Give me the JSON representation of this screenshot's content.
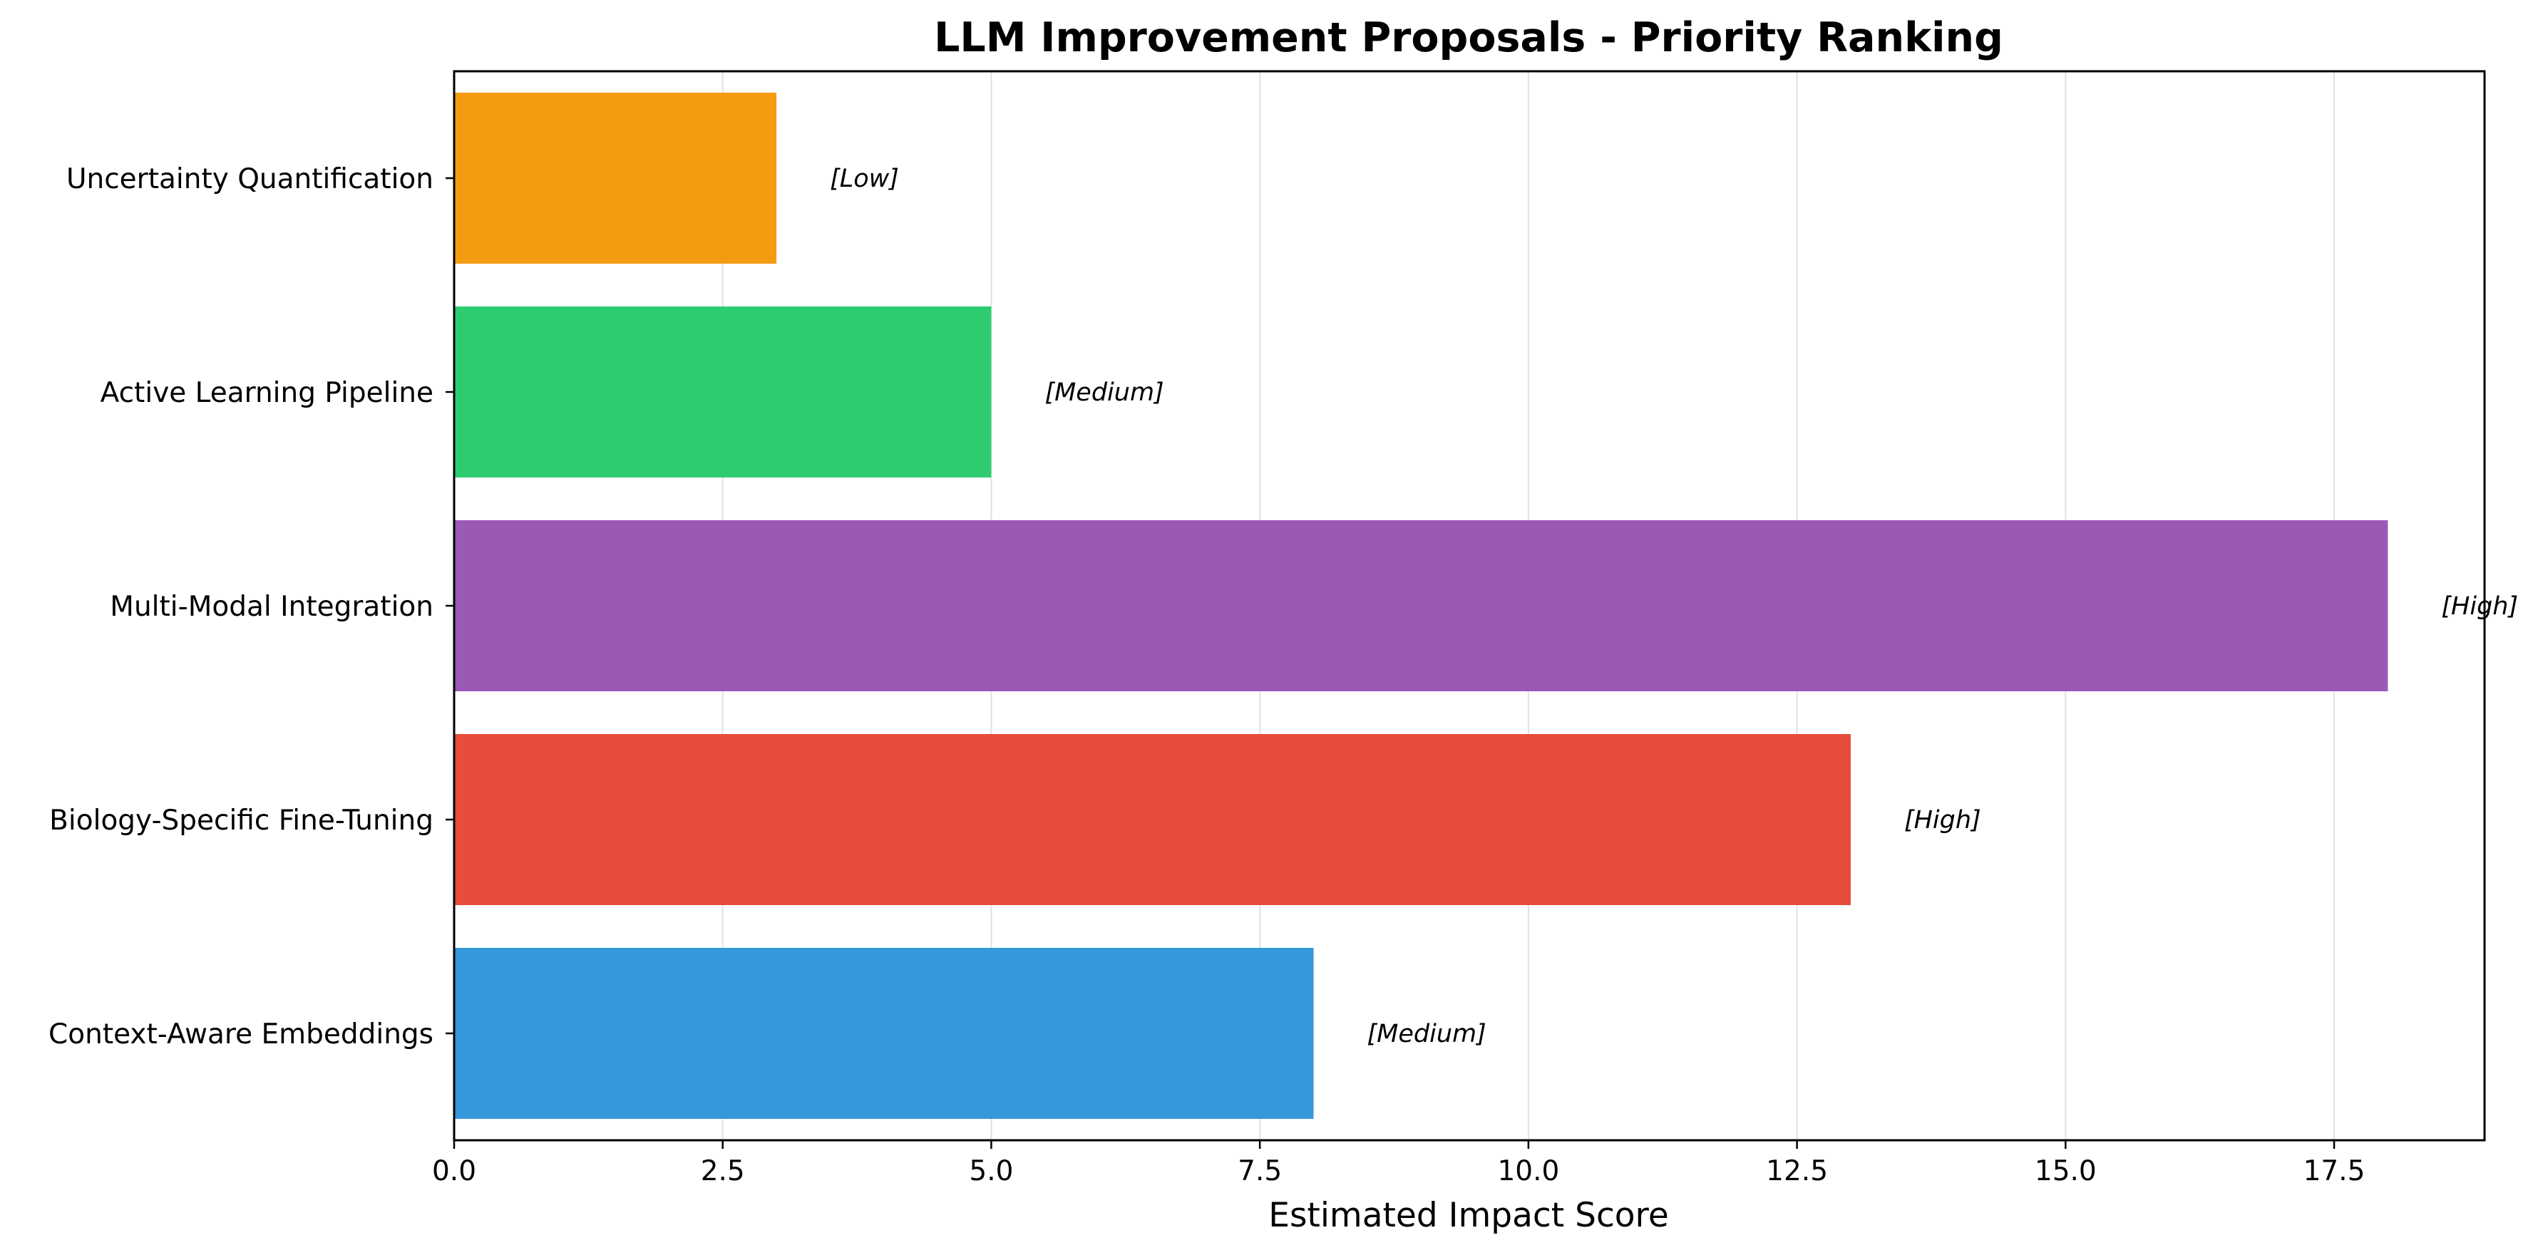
{
  "chart_data": {
    "type": "bar",
    "orientation": "horizontal",
    "title": "LLM Improvement Proposals - Priority Ranking",
    "xlabel": "Estimated Impact Score",
    "ylabel": "",
    "xlim": [
      0,
      18.9
    ],
    "xticks": [
      0,
      2.5,
      5,
      7.5,
      10,
      12.5,
      15,
      17.5
    ],
    "xtick_labels": [
      "0.0",
      "2.5",
      "5.0",
      "7.5",
      "10.0",
      "12.5",
      "15.0",
      "17.5"
    ],
    "grid": {
      "x": true,
      "y": false
    },
    "categories": [
      "Context-Aware Embeddings",
      "Biology-Specific Fine-Tuning",
      "Multi-Modal Integration",
      "Active Learning Pipeline",
      "Uncertainty Quantification"
    ],
    "values": [
      8,
      13,
      18,
      5,
      3
    ],
    "priorities": [
      "[Medium]",
      "[High]",
      "[High]",
      "[Medium]",
      "[Low]"
    ],
    "colors": [
      "#3498db",
      "#e74c3c",
      "#9b59b6",
      "#2ecc71",
      "#f39c12"
    ]
  }
}
